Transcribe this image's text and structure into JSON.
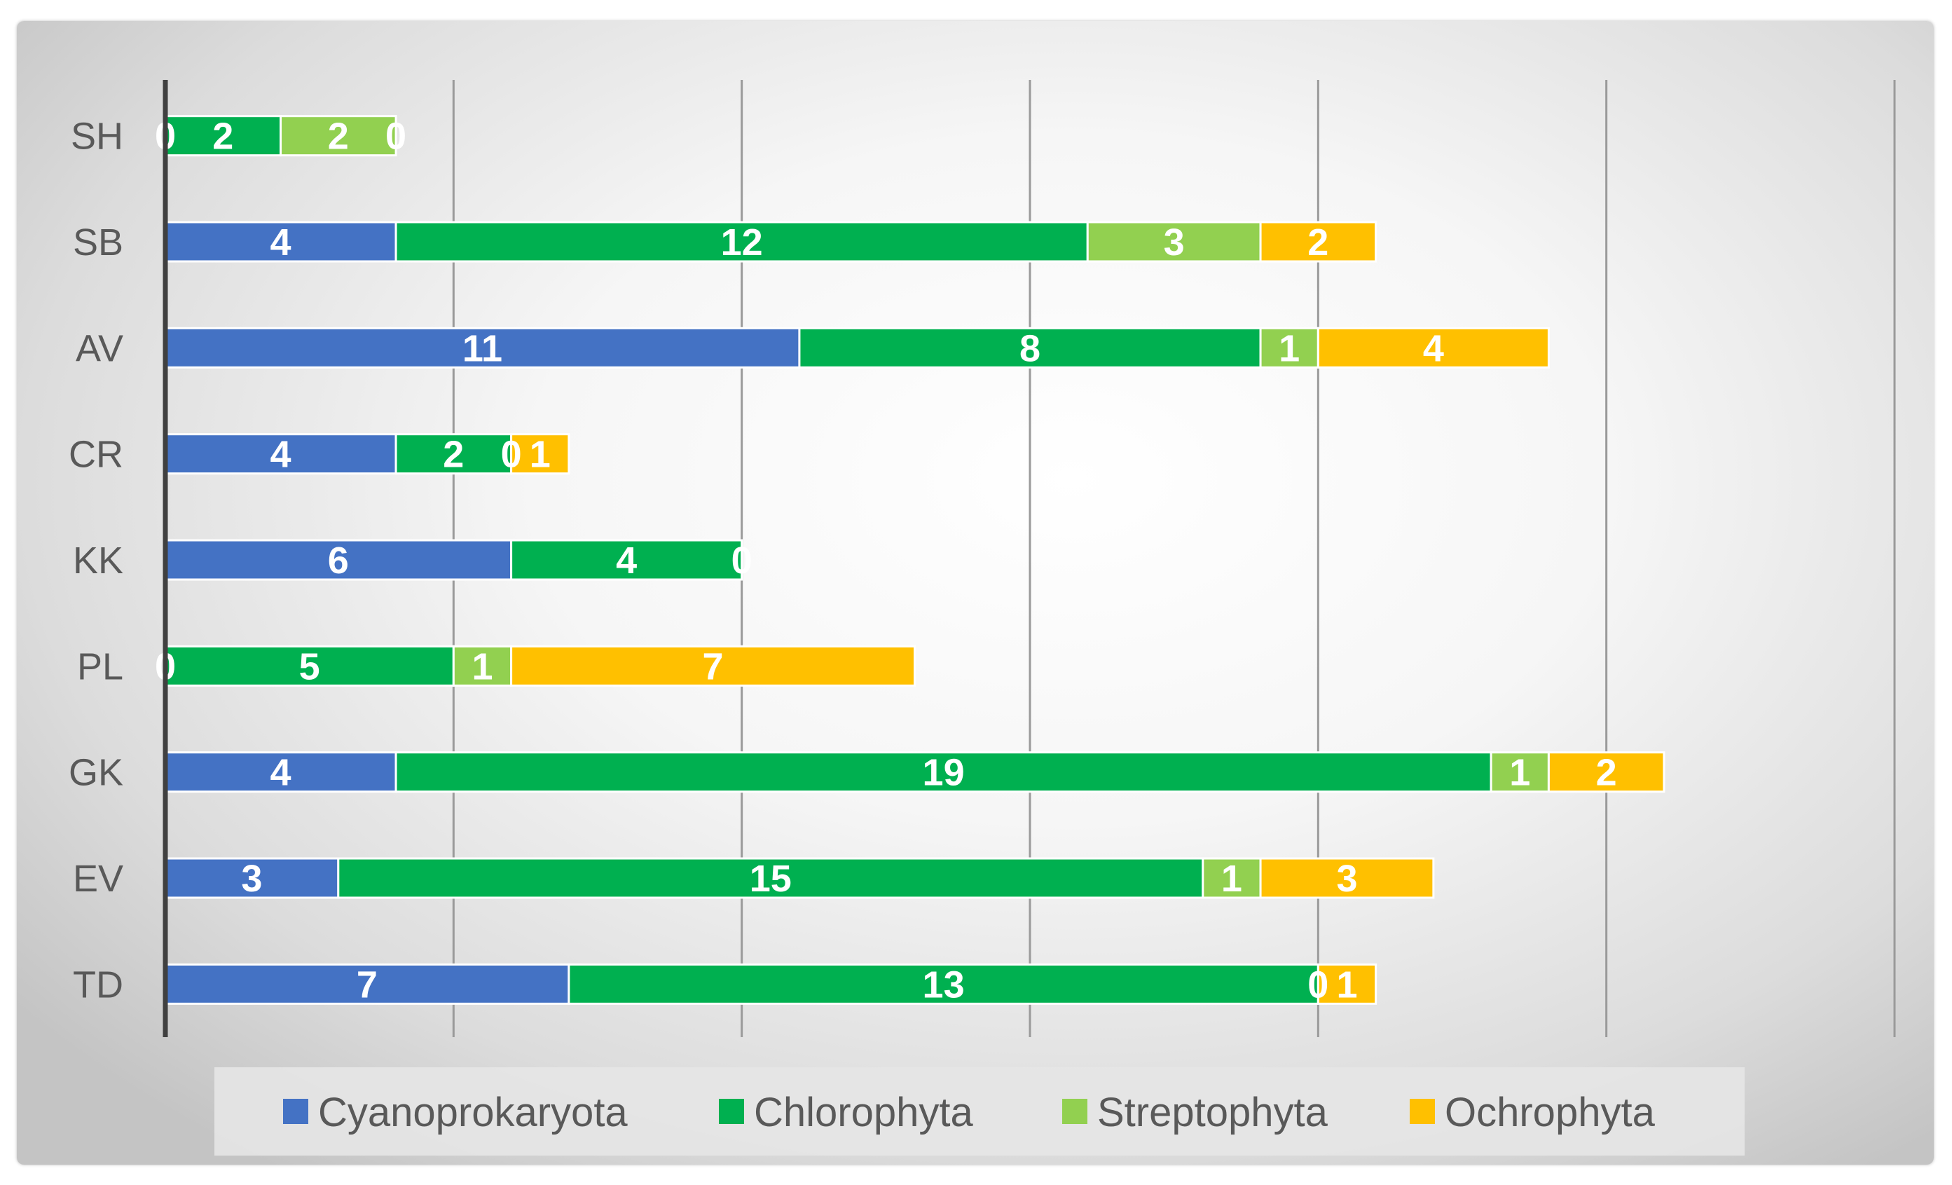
{
  "chart_data": {
    "type": "bar",
    "orientation": "horizontal",
    "stacked": true,
    "title": "",
    "xlabel": "",
    "ylabel": "",
    "xlim": [
      0,
      30
    ],
    "grid": true,
    "categories": [
      "SH",
      "SB",
      "AV",
      "CR",
      "KK",
      "PL",
      "GK",
      "EV",
      "TD"
    ],
    "series": [
      {
        "name": "Cyanoprokaryota",
        "color": "#4472C4",
        "values": [
          0,
          4,
          11,
          4,
          6,
          0,
          4,
          3,
          7
        ]
      },
      {
        "name": "Chlorophyta",
        "color": "#00B050",
        "values": [
          2,
          12,
          8,
          2,
          4,
          5,
          19,
          15,
          13
        ]
      },
      {
        "name": "Streptophyta",
        "color": "#92D050",
        "values": [
          2,
          3,
          1,
          0,
          0,
          1,
          1,
          1,
          0
        ]
      },
      {
        "name": "Ochrophyta",
        "color": "#FFC000",
        "values": [
          0,
          2,
          4,
          1,
          null,
          7,
          2,
          3,
          1
        ]
      }
    ],
    "legend_position": "bottom"
  }
}
